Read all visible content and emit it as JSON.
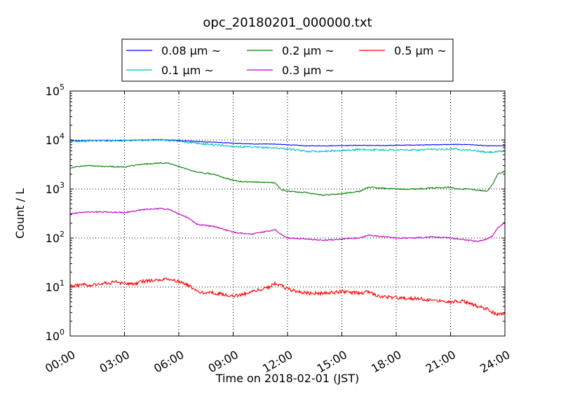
{
  "chart_data": {
    "type": "line",
    "title": "opc_20180201_000000.txt",
    "xlabel": "Time on 2018-02-01 (JST)",
    "ylabel": "Count / L",
    "x_unit": "hours",
    "xlim": [
      0,
      24
    ],
    "ylim": [
      1,
      100000
    ],
    "yscale": "log",
    "grid": true,
    "legend_position": "top-center-outside",
    "x_ticks": [
      {
        "value": 0,
        "label": "00:00"
      },
      {
        "value": 3,
        "label": "03:00"
      },
      {
        "value": 6,
        "label": "06:00"
      },
      {
        "value": 9,
        "label": "09:00"
      },
      {
        "value": 12,
        "label": "12:00"
      },
      {
        "value": 15,
        "label": "15:00"
      },
      {
        "value": 18,
        "label": "18:00"
      },
      {
        "value": 21,
        "label": "21:00"
      },
      {
        "value": 24,
        "label": "24:00"
      }
    ],
    "y_ticks": [
      {
        "value": 1,
        "base": "10",
        "exp": "0"
      },
      {
        "value": 10,
        "base": "10",
        "exp": "1"
      },
      {
        "value": 100,
        "base": "10",
        "exp": "2"
      },
      {
        "value": 1000,
        "base": "10",
        "exp": "3"
      },
      {
        "value": 10000,
        "base": "10",
        "exp": "4"
      },
      {
        "value": 100000,
        "base": "10",
        "exp": "5"
      }
    ],
    "series": [
      {
        "name": "0.08 μm ~",
        "color": "#0000ff",
        "x": [
          0,
          1,
          2,
          3,
          4,
          5,
          6,
          7,
          8,
          9,
          10,
          11,
          12,
          13,
          14,
          15,
          16,
          17,
          18,
          19,
          20,
          21,
          22,
          23,
          24
        ],
        "y": [
          9600,
          9800,
          9800,
          9800,
          10000,
          10200,
          9800,
          9300,
          9000,
          8600,
          8300,
          8300,
          8000,
          7600,
          7600,
          7700,
          7800,
          7700,
          7800,
          7900,
          8000,
          8100,
          8100,
          7600,
          7600
        ]
      },
      {
        "name": "0.1 μm ~",
        "color": "#00bfbf",
        "x": [
          0,
          1,
          2,
          3,
          4,
          5,
          6,
          7,
          8,
          9,
          10,
          11,
          12,
          13,
          14,
          15,
          16,
          17,
          18,
          19,
          20,
          21,
          22,
          23,
          24
        ],
        "y": [
          9400,
          9600,
          9700,
          9700,
          9900,
          10000,
          9400,
          8500,
          8000,
          7400,
          7100,
          7000,
          6600,
          5900,
          5900,
          6100,
          6400,
          6300,
          6300,
          6200,
          6400,
          6600,
          6300,
          5600,
          5900
        ]
      },
      {
        "name": "0.2 μm ~",
        "color": "#008000",
        "x": [
          0,
          0.5,
          1,
          2,
          3,
          3.5,
          4,
          5,
          5.5,
          6,
          6.5,
          7,
          8,
          8.5,
          9,
          9.5,
          10,
          11,
          11.3,
          11.6,
          12,
          13,
          14,
          15,
          16,
          16.5,
          17,
          18,
          19,
          20,
          21,
          21.3,
          22,
          23,
          23.3,
          23.6,
          24
        ],
        "y": [
          2700,
          2900,
          3000,
          2900,
          2800,
          3000,
          3200,
          3400,
          3300,
          2900,
          2500,
          2200,
          2000,
          1700,
          1500,
          1400,
          1400,
          1350,
          1350,
          1000,
          900,
          850,
          750,
          800,
          900,
          1100,
          1050,
          1000,
          1000,
          1050,
          1100,
          1000,
          1000,
          900,
          1200,
          2000,
          2300
        ]
      },
      {
        "name": "0.3 μm ~",
        "color": "#bf00bf",
        "x": [
          0,
          0.5,
          1,
          2,
          3,
          3.5,
          4,
          5,
          5.5,
          6,
          6.5,
          7,
          8,
          8.5,
          9,
          10,
          11,
          11.3,
          11.6,
          12,
          13,
          14,
          15,
          16,
          16.5,
          17,
          18,
          19,
          20,
          21,
          22,
          22.5,
          23,
          23.3,
          23.6,
          24
        ],
        "y": [
          310,
          330,
          340,
          340,
          330,
          350,
          380,
          400,
          380,
          310,
          260,
          190,
          170,
          150,
          130,
          120,
          140,
          150,
          120,
          100,
          95,
          90,
          95,
          100,
          115,
          110,
          100,
          100,
          105,
          100,
          90,
          85,
          95,
          110,
          160,
          210
        ]
      },
      {
        "name": "0.5 μm ~",
        "color": "#ff0000",
        "x": [
          0,
          0.5,
          1,
          2,
          2.5,
          3,
          3.5,
          4,
          5,
          5.5,
          6,
          6.5,
          7,
          8,
          8.5,
          9,
          9.5,
          10,
          11,
          11.3,
          11.6,
          12,
          13,
          14,
          15,
          16,
          16.5,
          17,
          18,
          19,
          20,
          21,
          21.5,
          22,
          22.5,
          23,
          23.5,
          24
        ],
        "y": [
          10.5,
          11,
          11,
          12,
          12.5,
          11.5,
          11.5,
          13,
          14,
          14,
          13,
          11,
          8,
          7.5,
          7,
          6.5,
          7,
          8,
          10,
          12,
          11,
          9,
          7.5,
          7.5,
          8,
          7.5,
          8,
          6.5,
          6,
          5.8,
          5.5,
          5,
          5.2,
          4.8,
          4,
          3.6,
          2.8,
          2.9
        ]
      }
    ]
  }
}
